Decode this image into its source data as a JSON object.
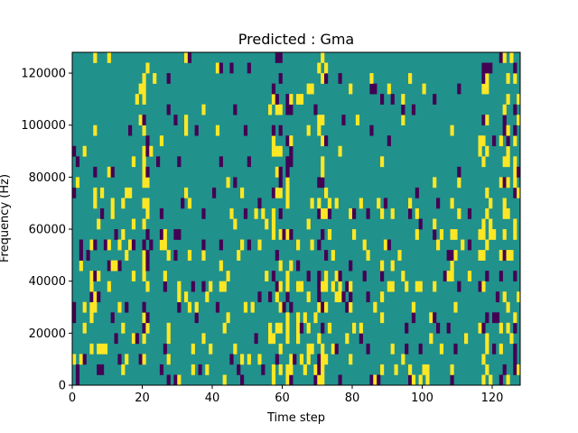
{
  "chart_data": {
    "type": "heatmap",
    "title": "Predicted : Gma",
    "xlabel": "Time step",
    "ylabel": "Frequency (Hz)",
    "xlim": [
      0,
      128
    ],
    "ylim": [
      0,
      128000
    ],
    "n_time_steps": 128,
    "n_freq_bins": 32,
    "xticks": [
      0,
      20,
      40,
      60,
      80,
      100,
      120
    ],
    "xtick_labels": [
      "0",
      "20",
      "40",
      "60",
      "80",
      "100",
      "120"
    ],
    "yticks": [
      0,
      20000,
      40000,
      60000,
      80000,
      100000,
      120000
    ],
    "ytick_labels": [
      "0",
      "20000",
      "40000",
      "60000",
      "80000",
      "100000",
      "120000"
    ],
    "colors": {
      "low": "#440154",
      "mid": "#21918c",
      "high": "#fde725"
    },
    "value_levels": {
      "low": -1,
      "mid": 0,
      "high": 1
    },
    "grid": false,
    "seed": 20240517,
    "hotspot_time_steps": [
      20,
      21,
      57,
      58,
      59,
      61,
      62,
      70,
      71,
      72,
      117,
      118,
      122,
      123,
      124,
      126,
      127
    ],
    "background_value": 0
  }
}
